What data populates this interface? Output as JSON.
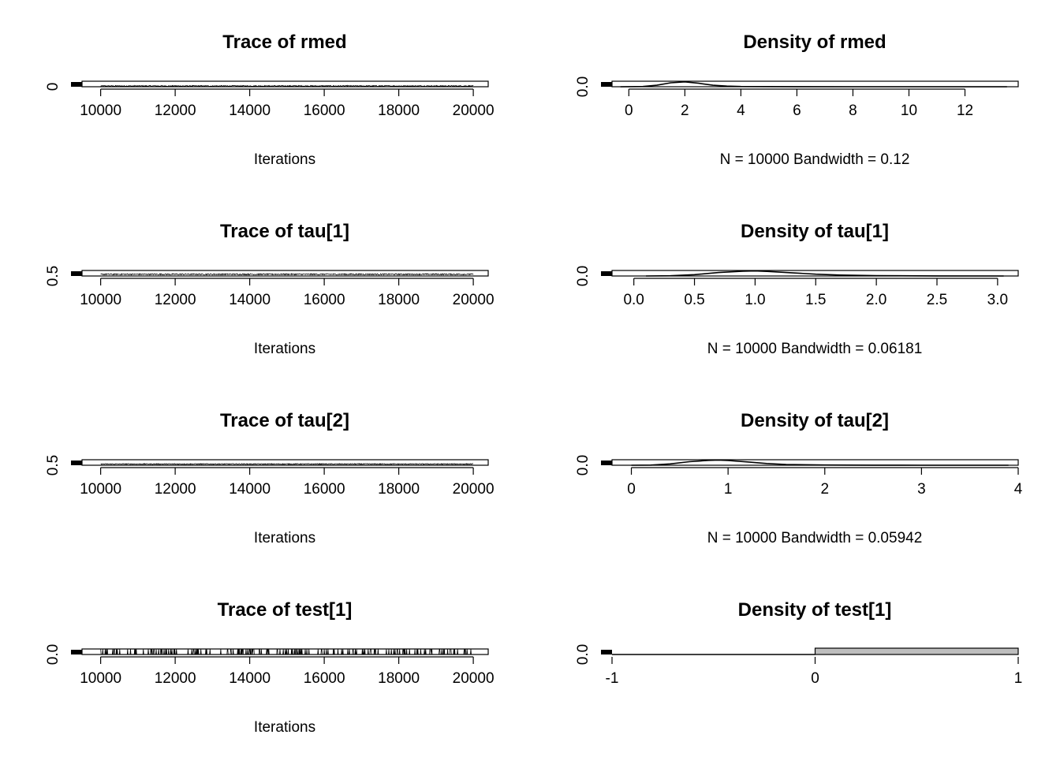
{
  "figure": {
    "background": "#ffffff",
    "ink": "#000000",
    "bar_fill": "#bebebe"
  },
  "chart_data": [
    {
      "type": "line",
      "title": "Trace of rmed",
      "xlabel": "Iterations",
      "ylabel": "",
      "xlim": [
        9500,
        20400
      ],
      "ylim": [
        0,
        13
      ],
      "xticks": [
        "10000",
        "12000",
        "14000",
        "16000",
        "18000",
        "20000"
      ],
      "yticks": [
        "0"
      ],
      "grid": false,
      "trace": {
        "start": 10001,
        "end": 20000,
        "n": 10000,
        "center": 1.8,
        "spread": 1.2
      }
    },
    {
      "type": "line",
      "title": "Density of rmed",
      "xlabel": "N = 10000   Bandwidth = 0.12",
      "ylabel": "",
      "xlim": [
        -0.6,
        13.9
      ],
      "ylim": [
        0,
        0.45
      ],
      "xticks": [
        "0",
        "2",
        "4",
        "6",
        "8",
        "10",
        "12"
      ],
      "yticks": [
        "0.0"
      ],
      "grid": false,
      "x": [
        -0.3,
        0.5,
        1.0,
        1.5,
        2.0,
        2.5,
        3.0,
        3.5,
        4.0,
        5.0,
        6.0,
        8.0,
        10.0,
        13.5
      ],
      "y": [
        0.0,
        0.02,
        0.12,
        0.32,
        0.4,
        0.28,
        0.12,
        0.05,
        0.02,
        0.01,
        0.005,
        0.002,
        0.001,
        0.0
      ]
    },
    {
      "type": "line",
      "title": "Trace of tau[1]",
      "xlabel": "Iterations",
      "ylabel": "",
      "xlim": [
        9500,
        20400
      ],
      "ylim": [
        0,
        3.2
      ],
      "xticks": [
        "10000",
        "12000",
        "14000",
        "16000",
        "18000",
        "20000"
      ],
      "yticks": [
        "0.5"
      ],
      "grid": false,
      "trace": {
        "start": 10001,
        "end": 20000,
        "n": 10000,
        "center": 1.0,
        "spread": 0.35
      }
    },
    {
      "type": "line",
      "title": "Density of tau[1]",
      "xlabel": "N = 10000   Bandwidth = 0.06181",
      "ylabel": "",
      "xlim": [
        -0.18,
        3.17
      ],
      "ylim": [
        0,
        1.2
      ],
      "xticks": [
        "0.0",
        "0.5",
        "1.0",
        "1.5",
        "2.0",
        "2.5",
        "3.0"
      ],
      "yticks": [
        "0.0"
      ],
      "grid": false,
      "x": [
        0.1,
        0.3,
        0.5,
        0.7,
        0.9,
        1.0,
        1.1,
        1.3,
        1.5,
        1.7,
        2.0,
        2.5,
        3.05
      ],
      "y": [
        0.0,
        0.05,
        0.3,
        0.75,
        1.05,
        1.1,
        1.0,
        0.7,
        0.4,
        0.2,
        0.07,
        0.02,
        0.0
      ]
    },
    {
      "type": "line",
      "title": "Trace of tau[2]",
      "xlabel": "Iterations",
      "ylabel": "",
      "xlim": [
        9500,
        20400
      ],
      "ylim": [
        0,
        4
      ],
      "xticks": [
        "10000",
        "12000",
        "14000",
        "16000",
        "18000",
        "20000"
      ],
      "yticks": [
        "0.5"
      ],
      "grid": false,
      "trace": {
        "start": 10001,
        "end": 20000,
        "n": 10000,
        "center": 0.9,
        "spread": 0.3
      }
    },
    {
      "type": "line",
      "title": "Density of tau[2]",
      "xlabel": "N = 10000   Bandwidth = 0.05942",
      "ylabel": "",
      "xlim": [
        -0.2,
        4.0
      ],
      "ylim": [
        0,
        1.4
      ],
      "xticks": [
        "0",
        "1",
        "2",
        "3",
        "4"
      ],
      "yticks": [
        "0.0"
      ],
      "grid": false,
      "x": [
        0.0,
        0.2,
        0.4,
        0.6,
        0.8,
        0.9,
        1.0,
        1.2,
        1.4,
        1.6,
        2.0,
        2.5,
        3.0,
        3.9
      ],
      "y": [
        0.0,
        0.05,
        0.35,
        0.9,
        1.25,
        1.3,
        1.2,
        0.85,
        0.45,
        0.2,
        0.06,
        0.02,
        0.01,
        0.0
      ]
    },
    {
      "type": "line",
      "title": "Trace of test[1]",
      "xlabel": "Iterations",
      "ylabel": "",
      "xlim": [
        9500,
        20400
      ],
      "ylim": [
        0,
        1
      ],
      "xticks": [
        "10000",
        "12000",
        "14000",
        "16000",
        "18000",
        "20000"
      ],
      "yticks": [
        "0.0"
      ],
      "grid": false,
      "trace": {
        "start": 10001,
        "end": 20000,
        "n": 10000,
        "binary": true,
        "p_one": 0.03
      }
    },
    {
      "type": "bar",
      "title": "Density of test[1]",
      "xlabel": "",
      "ylabel": "",
      "xlim": [
        -1,
        1
      ],
      "ylim": [
        0,
        1
      ],
      "xticks": [
        "-1",
        "0",
        "1"
      ],
      "yticks": [
        "0.0"
      ],
      "grid": false,
      "categories": [
        "[-1, 0)",
        "[0, 1]"
      ],
      "values": [
        0.0,
        1.0
      ]
    }
  ]
}
